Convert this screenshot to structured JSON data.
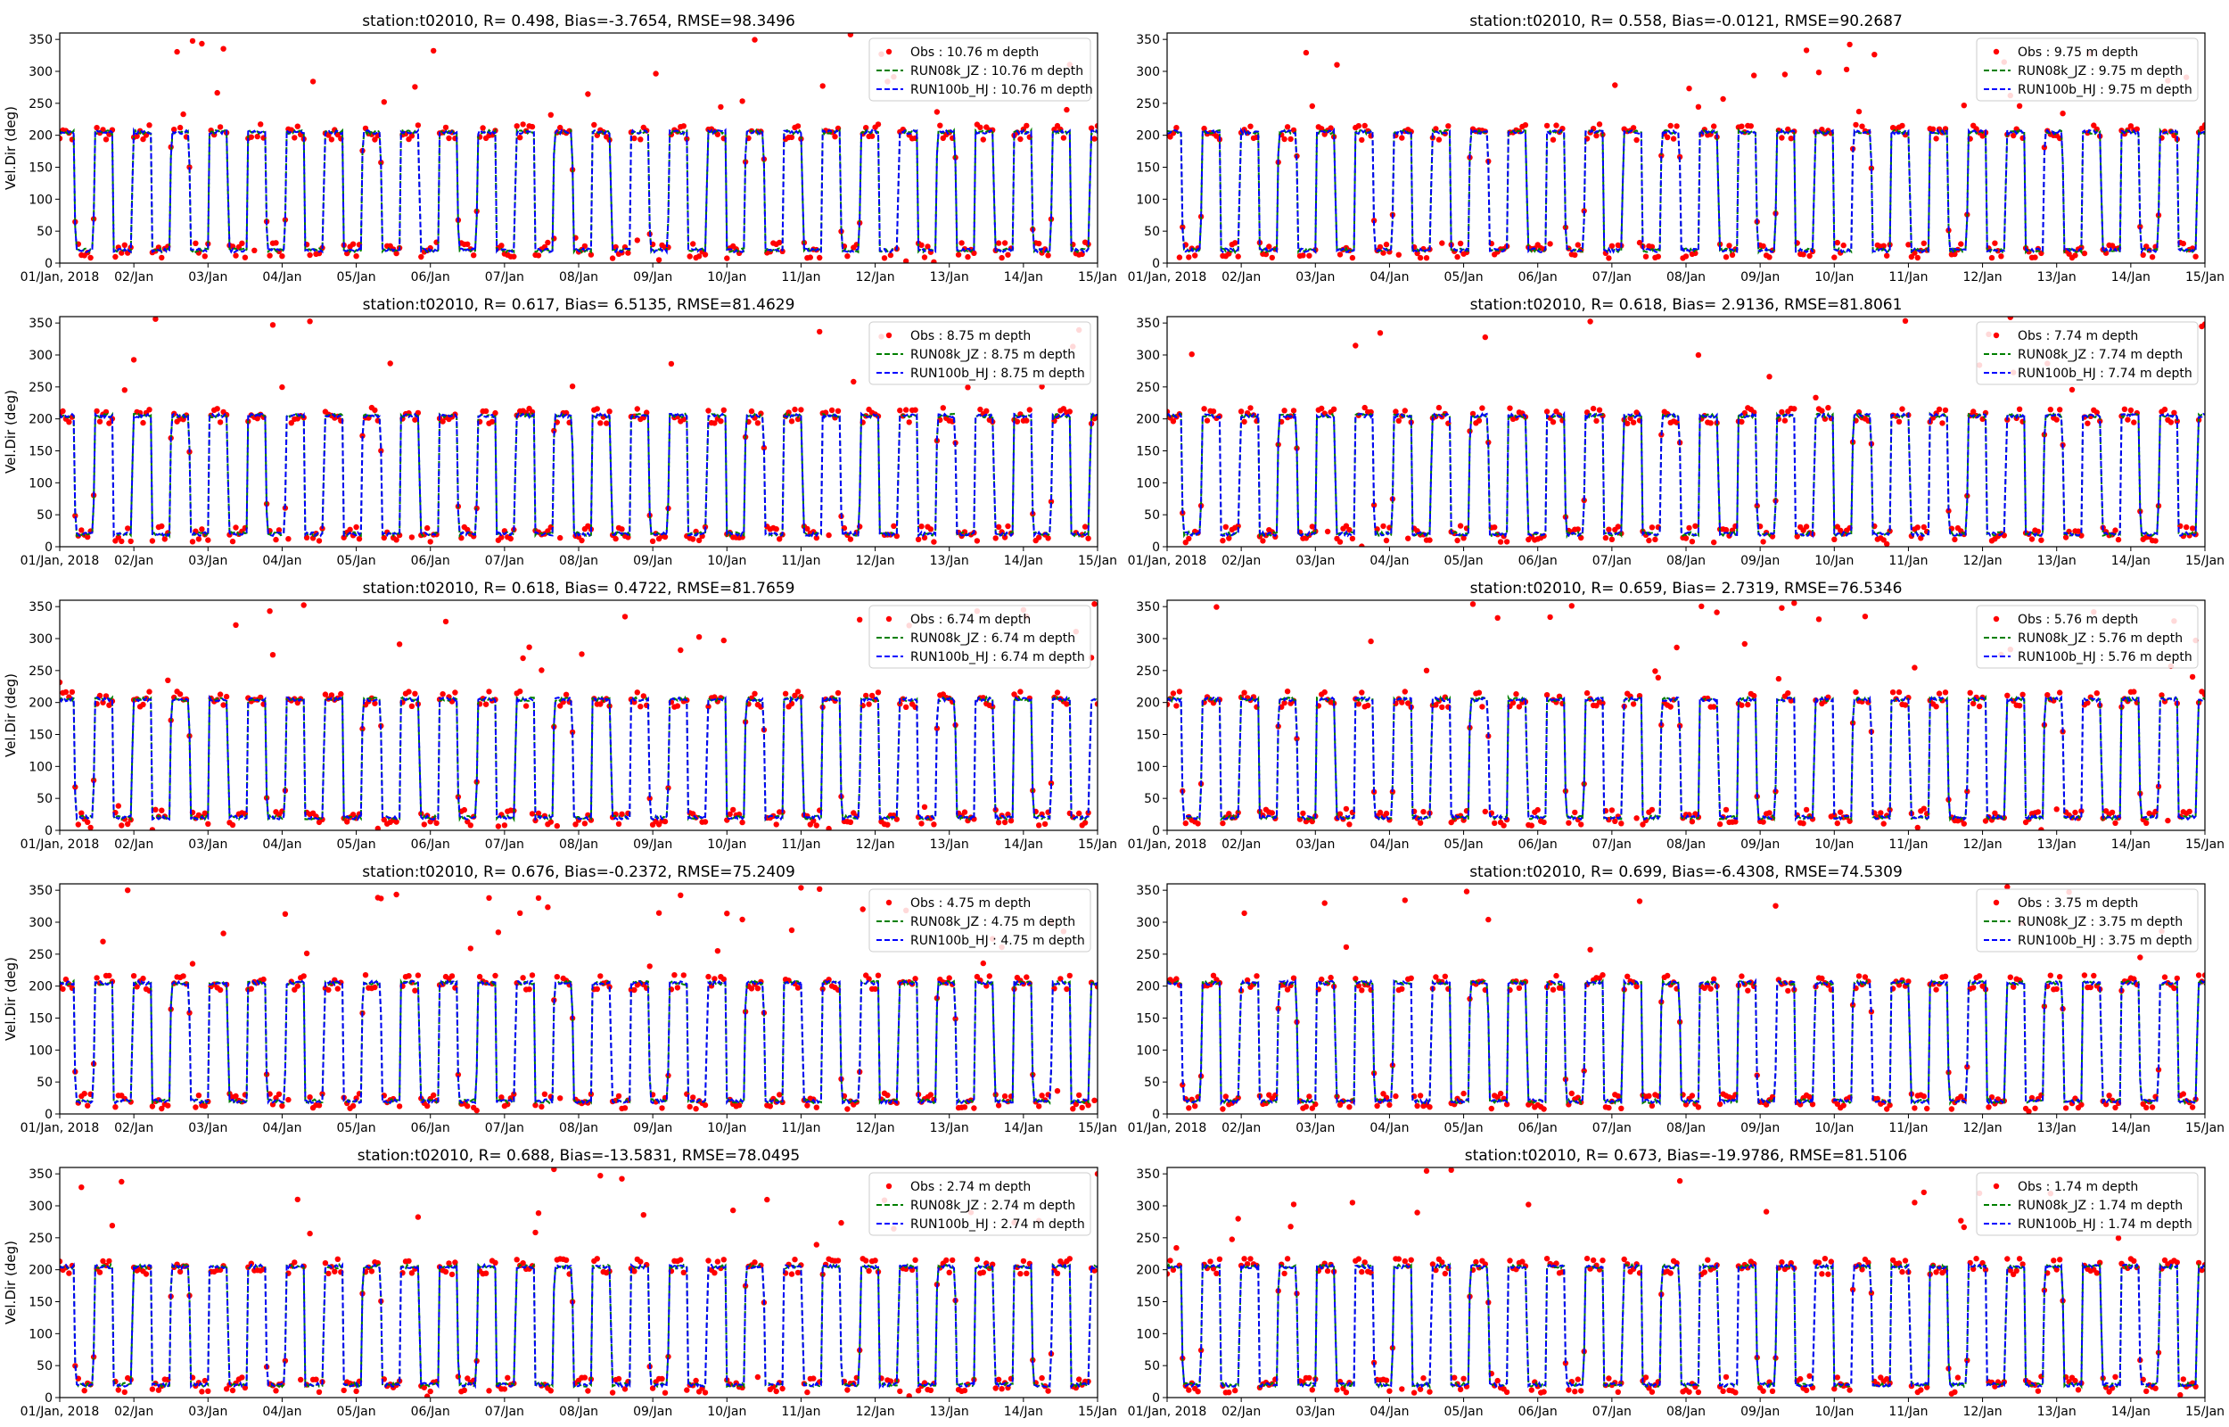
{
  "figure": {
    "ylabel": "Vel.Dir (deg)",
    "yticks": [
      0,
      50,
      100,
      150,
      200,
      250,
      300,
      350
    ],
    "ylim": [
      0,
      360
    ],
    "xlim_days": [
      0,
      14
    ],
    "xtick_labels": [
      "01/Jan, 2018",
      "02/Jan",
      "03/Jan",
      "04/Jan",
      "05/Jan",
      "06/Jan",
      "07/Jan",
      "08/Jan",
      "09/Jan",
      "10/Jan",
      "11/Jan",
      "12/Jan",
      "13/Jan",
      "14/Jan",
      "15/Jan"
    ],
    "colors": {
      "obs": "#ff0000",
      "run08k": "#008000",
      "run100b": "#0000ff",
      "axis": "#000000"
    }
  },
  "chart_data": [
    {
      "type": "line",
      "title": "station:t02010, R= 0.498, Bias=-3.7654, RMSE=98.3496",
      "ylabel": "Vel.Dir (deg)",
      "legend": [
        "Obs : 10.76 m depth",
        "RUN08k_JZ : 10.76 m depth",
        "RUN100b_HJ : 10.76 m depth"
      ],
      "low": 20,
      "high": 205,
      "seed": 11
    },
    {
      "type": "line",
      "title": "station:t02010, R= 0.558, Bias=-0.0121, RMSE=90.2687",
      "ylabel": "",
      "legend": [
        "Obs : 9.75 m depth",
        "RUN08k_JZ : 9.75 m depth",
        "RUN100b_HJ : 9.75 m depth"
      ],
      "low": 20,
      "high": 205,
      "seed": 12
    },
    {
      "type": "line",
      "title": "station:t02010, R= 0.617, Bias= 6.5135, RMSE=81.4629",
      "ylabel": "Vel.Dir (deg)",
      "legend": [
        "Obs : 8.75 m depth",
        "RUN08k_JZ : 8.75 m depth",
        "RUN100b_HJ : 8.75 m depth"
      ],
      "low": 20,
      "high": 205,
      "seed": 13
    },
    {
      "type": "line",
      "title": "station:t02010, R= 0.618, Bias= 2.9136, RMSE=81.8061",
      "ylabel": "",
      "legend": [
        "Obs : 7.74 m depth",
        "RUN08k_JZ : 7.74 m depth",
        "RUN100b_HJ : 7.74 m depth"
      ],
      "low": 20,
      "high": 205,
      "seed": 14
    },
    {
      "type": "line",
      "title": "station:t02010, R= 0.618, Bias= 0.4722, RMSE=81.7659",
      "ylabel": "Vel.Dir (deg)",
      "legend": [
        "Obs : 6.74 m depth",
        "RUN08k_JZ : 6.74 m depth",
        "RUN100b_HJ : 6.74 m depth"
      ],
      "low": 20,
      "high": 205,
      "seed": 15
    },
    {
      "type": "line",
      "title": "station:t02010, R= 0.659, Bias= 2.7319, RMSE=76.5346",
      "ylabel": "",
      "legend": [
        "Obs : 5.76 m depth",
        "RUN08k_JZ : 5.76 m depth",
        "RUN100b_HJ : 5.76 m depth"
      ],
      "low": 20,
      "high": 205,
      "seed": 16
    },
    {
      "type": "line",
      "title": "station:t02010, R= 0.676, Bias=-0.2372, RMSE=75.2409",
      "ylabel": "Vel.Dir (deg)",
      "legend": [
        "Obs : 4.75 m depth",
        "RUN08k_JZ : 4.75 m depth",
        "RUN100b_HJ : 4.75 m depth"
      ],
      "low": 20,
      "high": 205,
      "seed": 17
    },
    {
      "type": "line",
      "title": "station:t02010, R= 0.699, Bias=-6.4308, RMSE=74.5309",
      "ylabel": "",
      "legend": [
        "Obs : 3.75 m depth",
        "RUN08k_JZ : 3.75 m depth",
        "RUN100b_HJ : 3.75 m depth"
      ],
      "low": 20,
      "high": 205,
      "seed": 18
    },
    {
      "type": "line",
      "title": "station:t02010, R= 0.688, Bias=-13.5831, RMSE=78.0495",
      "ylabel": "Vel.Dir (deg)",
      "legend": [
        "Obs : 2.74 m depth",
        "RUN08k_JZ : 2.74 m depth",
        "RUN100b_HJ : 2.74 m depth"
      ],
      "low": 20,
      "high": 205,
      "seed": 19
    },
    {
      "type": "line",
      "title": "station:t02010, R= 0.673, Bias=-19.9786, RMSE=81.5106",
      "ylabel": "",
      "legend": [
        "Obs : 1.74 m depth",
        "RUN08k_JZ : 1.74 m depth",
        "RUN100b_HJ : 1.74 m depth"
      ],
      "low": 20,
      "high": 205,
      "seed": 20
    }
  ]
}
